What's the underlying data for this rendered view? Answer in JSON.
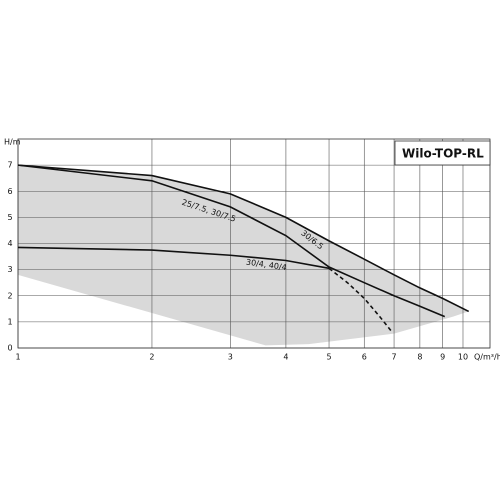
{
  "chart_data": {
    "type": "line",
    "title": "Wilo-TOP-RL",
    "y_label": "H/m",
    "x_label": "Q/m³/h",
    "log_x": true,
    "grid": true,
    "xlim": [
      1,
      11.5
    ],
    "xticks": [
      1,
      2,
      3,
      4,
      5,
      6,
      7,
      8,
      9,
      10
    ],
    "ylim": [
      0,
      8
    ],
    "yticks": [
      0,
      1,
      2,
      3,
      4,
      5,
      6,
      7
    ],
    "region": {
      "color": "#d9d9d9",
      "x": [
        1,
        2,
        3,
        4,
        5,
        6,
        7,
        8,
        9,
        10.3,
        9.5,
        7,
        4.5,
        3.6,
        1
      ],
      "y": [
        7,
        6.6,
        5.9,
        5.0,
        4.1,
        3.4,
        2.8,
        2.3,
        1.9,
        1.4,
        1.2,
        0.55,
        0.15,
        0.1,
        2.8
      ]
    },
    "series": [
      {
        "name": "25/7.5, 30/7.5",
        "color": "#111111",
        "dashed": false,
        "x": [
          1,
          2,
          3,
          4,
          5,
          6,
          7,
          8,
          9.1
        ],
        "values": [
          7.0,
          6.4,
          5.4,
          4.3,
          3.1,
          2.5,
          2.0,
          1.6,
          1.2
        ]
      },
      {
        "name": "30/6.5",
        "color": "#111111",
        "dashed": false,
        "x": [
          1,
          2,
          3,
          4,
          5,
          6,
          7,
          8,
          9,
          10.3
        ],
        "values": [
          7.0,
          6.6,
          5.9,
          5.0,
          4.1,
          3.4,
          2.8,
          2.3,
          1.9,
          1.4
        ]
      },
      {
        "name": "30/4, 40/4",
        "color": "#111111",
        "dashed": false,
        "x": [
          1,
          2,
          3,
          4,
          5
        ],
        "values": [
          3.85,
          3.75,
          3.55,
          3.35,
          3.05
        ]
      },
      {
        "color": "#111111",
        "dashed": true,
        "x": [
          5,
          5.5,
          6,
          6.5,
          6.9
        ],
        "values": [
          3.05,
          2.5,
          1.9,
          1.2,
          0.65
        ]
      }
    ]
  }
}
